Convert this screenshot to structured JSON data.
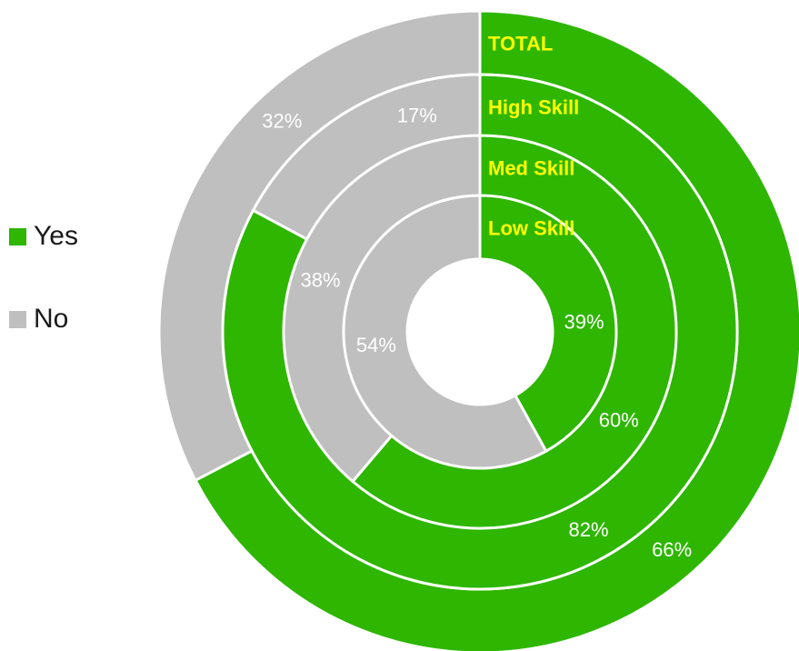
{
  "chart_data": {
    "type": "pie",
    "subtype": "multi-level donut",
    "title": "",
    "series_names": [
      "Yes",
      "No"
    ],
    "colors": {
      "Yes": "#2eb600",
      "No": "#bfbfbf",
      "ring_label": "#ffff00",
      "pct_label": "#ffffff"
    },
    "rings": [
      {
        "name": "TOTAL",
        "values": {
          "Yes": 66,
          "No": 32
        },
        "labels": {
          "Yes": "66%",
          "No": "32%"
        }
      },
      {
        "name": "High Skill",
        "values": {
          "Yes": 82,
          "No": 17
        },
        "labels": {
          "Yes": "82%",
          "No": "17%"
        }
      },
      {
        "name": "Med Skill",
        "values": {
          "Yes": 60,
          "No": 38
        },
        "labels": {
          "Yes": "60%",
          "No": "38%"
        }
      },
      {
        "name": "Low Skill",
        "values": {
          "Yes": 39,
          "No": 54
        },
        "labels": {
          "Yes": "39%",
          "No": "54%"
        }
      }
    ],
    "legend": {
      "position": "left",
      "items": [
        "Yes",
        "No"
      ]
    }
  }
}
